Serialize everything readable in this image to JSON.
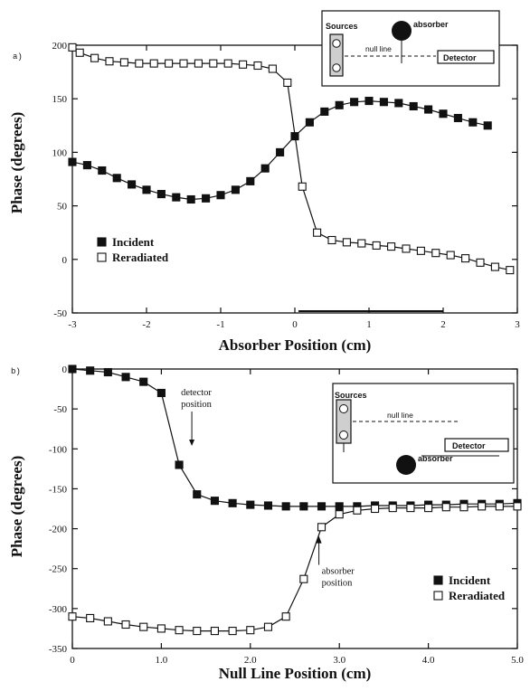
{
  "chart_data": [
    {
      "type": "line",
      "panel_label": "a)",
      "xlabel": "Absorber Position (cm)",
      "ylabel": "Phase (degrees)",
      "xlim": [
        -3,
        3
      ],
      "ylim": [
        -50,
        200
      ],
      "x_ticks": [
        "-3",
        "-2",
        "-1",
        "0",
        "1",
        "2",
        "3"
      ],
      "y_ticks": [
        "-50",
        "0",
        "50",
        "100",
        "150",
        "200"
      ],
      "legend_position": "bottom-left",
      "series": [
        {
          "name": "Incident",
          "marker": "filled-square",
          "x": [
            -3.0,
            -2.8,
            -2.6,
            -2.4,
            -2.2,
            -2.0,
            -1.8,
            -1.6,
            -1.4,
            -1.2,
            -1.0,
            -0.8,
            -0.6,
            -0.4,
            -0.2,
            0.0,
            0.2,
            0.4,
            0.6,
            0.8,
            1.0,
            1.2,
            1.4,
            1.6,
            1.8,
            2.0,
            2.2,
            2.4,
            2.6
          ],
          "y": [
            91,
            88,
            83,
            76,
            70,
            65,
            61,
            58,
            56,
            57,
            60,
            65,
            73,
            85,
            100,
            115,
            128,
            138,
            144,
            147,
            148,
            147,
            146,
            143,
            140,
            136,
            132,
            128,
            125
          ]
        },
        {
          "name": "Reradiated",
          "marker": "open-square",
          "x": [
            -3.0,
            -2.9,
            -2.7,
            -2.5,
            -2.3,
            -2.1,
            -1.9,
            -1.7,
            -1.5,
            -1.3,
            -1.1,
            -0.9,
            -0.7,
            -0.5,
            -0.3,
            -0.1,
            0.1,
            0.3,
            0.5,
            0.7,
            0.9,
            1.1,
            1.3,
            1.5,
            1.7,
            1.9,
            2.1,
            2.3,
            2.5,
            2.7,
            2.9
          ],
          "y": [
            198,
            193,
            188,
            185,
            184,
            183,
            183,
            183,
            183,
            183,
            183,
            183,
            182,
            181,
            178,
            165,
            68,
            25,
            18,
            16,
            15,
            13,
            12,
            10,
            8,
            6,
            4,
            1,
            -3,
            -7,
            -10
          ]
        }
      ],
      "inset": {
        "labels": [
          "Sources",
          "absorber",
          "null line",
          "Detector"
        ]
      }
    },
    {
      "type": "line",
      "panel_label": "b)",
      "xlabel": "Null Line Position (cm)",
      "ylabel": "Phase (degrees)",
      "xlim": [
        0,
        5
      ],
      "ylim": [
        -350,
        0
      ],
      "x_ticks": [
        "0",
        "1.0",
        "2.0",
        "3.0",
        "4.0",
        "5.0"
      ],
      "y_ticks": [
        "0",
        "-50",
        "-100",
        "-150",
        "-200",
        "-250",
        "-300",
        "-350"
      ],
      "legend_position": "bottom-right",
      "annotations": [
        {
          "text_lines": [
            "detector",
            "position"
          ],
          "x": 1.2,
          "y": -120
        },
        {
          "text_lines": [
            "absorber",
            "position"
          ],
          "x": 2.75,
          "y": -200
        }
      ],
      "series": [
        {
          "name": "Incident",
          "marker": "filled-square",
          "x": [
            0.0,
            0.2,
            0.4,
            0.6,
            0.8,
            1.0,
            1.2,
            1.4,
            1.6,
            1.8,
            2.0,
            2.2,
            2.4,
            2.6,
            2.8,
            3.0,
            3.2,
            3.4,
            3.6,
            3.8,
            4.0,
            4.2,
            4.4,
            4.6,
            4.8,
            5.0
          ],
          "y": [
            0,
            -2,
            -4,
            -10,
            -16,
            -30,
            -120,
            -157,
            -165,
            -168,
            -170,
            -171,
            -172,
            -172,
            -172,
            -172,
            -172,
            -171,
            -171,
            -171,
            -170,
            -170,
            -169,
            -169,
            -169,
            -168
          ]
        },
        {
          "name": "Reradiated",
          "marker": "open-square",
          "x": [
            0.0,
            0.2,
            0.4,
            0.6,
            0.8,
            1.0,
            1.2,
            1.4,
            1.6,
            1.8,
            2.0,
            2.2,
            2.4,
            2.6,
            2.8,
            3.0,
            3.2,
            3.4,
            3.6,
            3.8,
            4.0,
            4.2,
            4.4,
            4.6,
            4.8,
            5.0
          ],
          "y": [
            -310,
            -312,
            -316,
            -320,
            -323,
            -325,
            -327,
            -328,
            -328,
            -328,
            -327,
            -323,
            -310,
            -263,
            -198,
            -182,
            -177,
            -175,
            -174,
            -174,
            -174,
            -173,
            -173,
            -172,
            -172,
            -172
          ]
        }
      ],
      "inset": {
        "labels": [
          "Sources",
          "null line",
          "Detector",
          "absorber"
        ]
      }
    }
  ]
}
